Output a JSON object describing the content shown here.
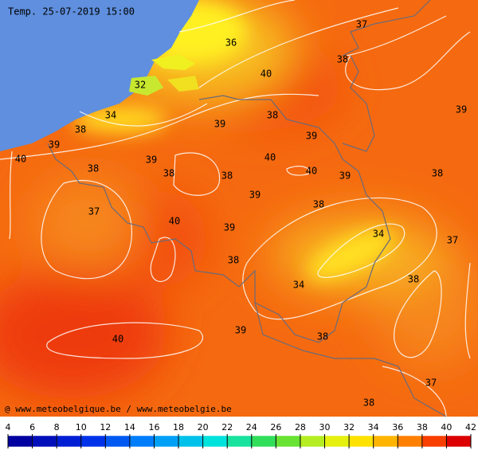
{
  "header": {
    "title": "Temp. 25-07-2019 15:00"
  },
  "contour_labels": [
    36,
    37,
    38,
    40,
    32,
    34,
    38,
    39,
    39,
    38,
    39,
    40,
    39,
    40,
    38,
    38,
    38,
    40,
    39,
    38,
    39,
    39,
    38,
    37,
    40,
    39,
    34,
    37,
    38,
    34,
    38,
    39,
    38,
    40,
    37,
    38
  ],
  "credit": "@ www.meteobelgique.be / www.meteobelgie.be",
  "colorbar": {
    "ticks": [
      4,
      6,
      8,
      10,
      12,
      14,
      16,
      18,
      20,
      22,
      24,
      26,
      28,
      30,
      32,
      34,
      36,
      38,
      40,
      42
    ]
  }
}
